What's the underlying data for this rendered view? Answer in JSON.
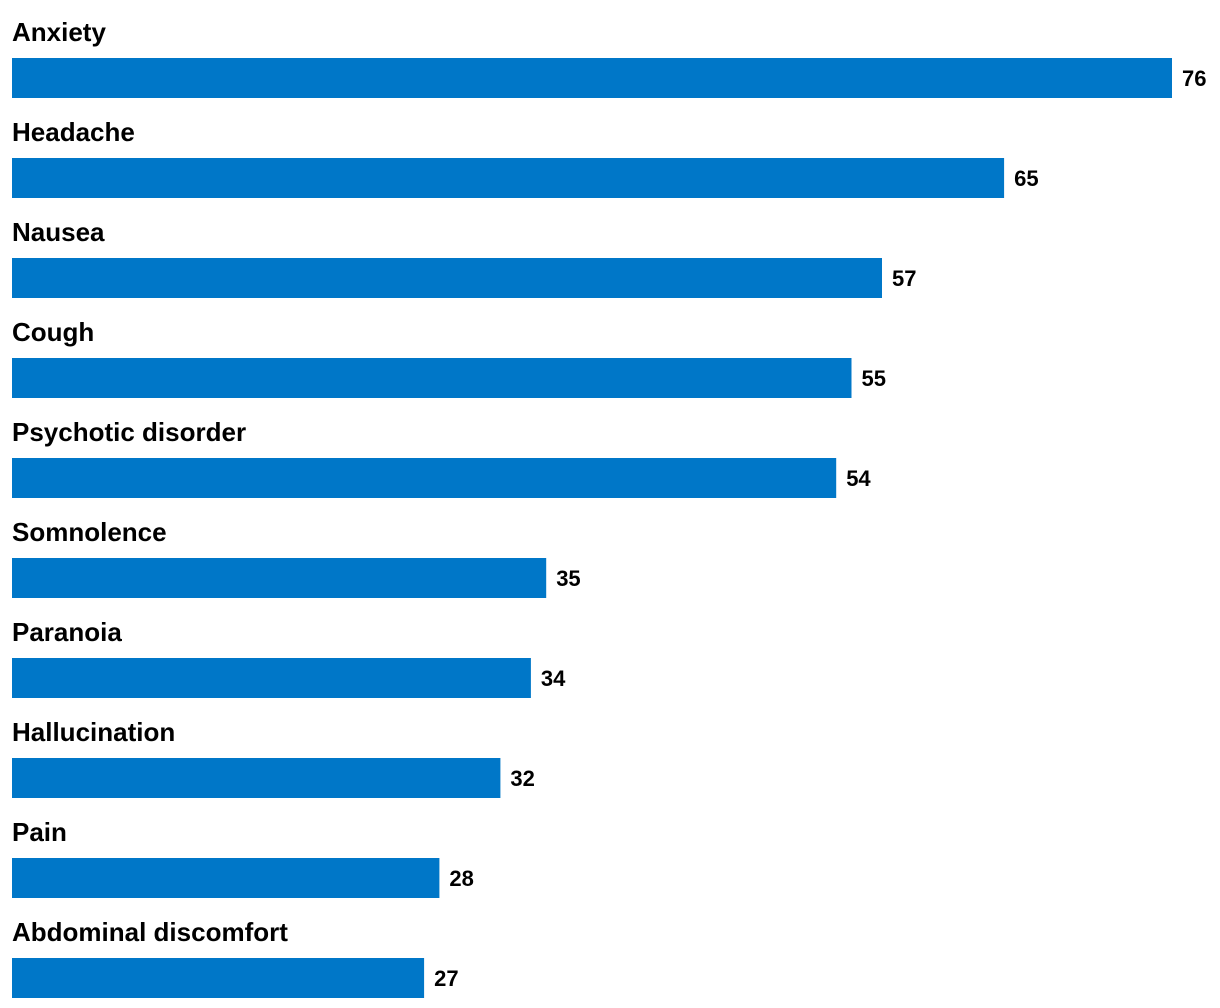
{
  "chart_data": {
    "type": "bar",
    "orientation": "horizontal",
    "categories": [
      "Anxiety",
      "Headache",
      "Nausea",
      "Cough",
      "Psychotic disorder",
      "Somnolence",
      "Paranoia",
      "Hallucination",
      "Pain",
      "Abdominal discomfort"
    ],
    "values": [
      76,
      65,
      57,
      55,
      54,
      35,
      34,
      32,
      28,
      27
    ],
    "value_labels": [
      "76",
      "65",
      "57",
      "55",
      "54",
      "35",
      "34",
      "32",
      "28",
      "27"
    ],
    "title": "",
    "xlabel": "",
    "ylabel": "",
    "xlim": [
      0,
      76
    ],
    "grid": false,
    "legend": "none",
    "bar_color": "#0077C8"
  }
}
